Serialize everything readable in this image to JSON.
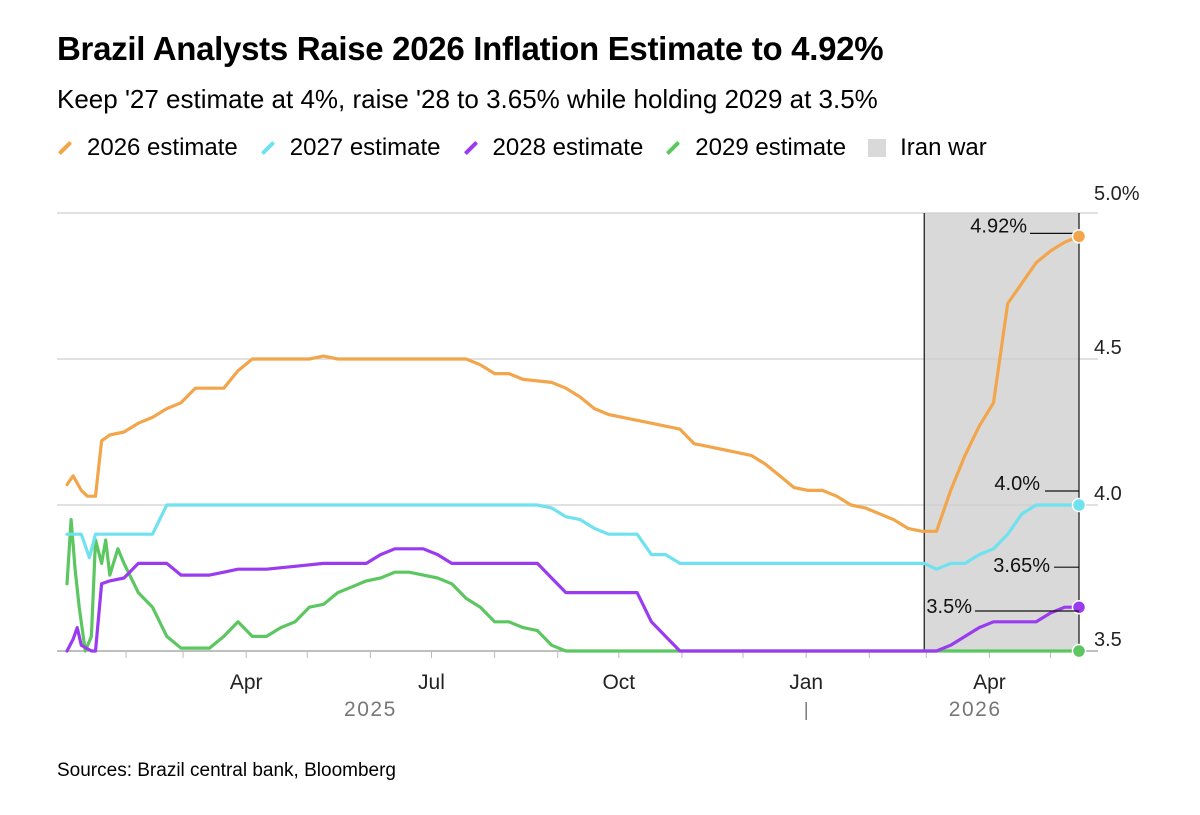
{
  "title": "Brazil Analysts Raise 2026 Inflation Estimate to 4.92%",
  "subtitle": "Keep '27 estimate at 4%, raise '28 to 3.65% while holding 2029 at 3.5%",
  "legend": [
    {
      "label": "2026 estimate",
      "color": "#f2a54a"
    },
    {
      "label": "2027 estimate",
      "color": "#6fe1ef"
    },
    {
      "label": "2028 estimate",
      "color": "#9b3bf0"
    },
    {
      "label": "2029 estimate",
      "color": "#5cc760"
    },
    {
      "label": "Iran war",
      "color": "#d9d9d9"
    }
  ],
  "source": "Sources: Brazil central bank, Bloomberg",
  "chart_data": {
    "type": "line",
    "x_axis": {
      "range": [
        "2025-01-03",
        "2026-05-15"
      ],
      "tick_labels": [
        {
          "date": "2025-04-01",
          "label": "Apr"
        },
        {
          "date": "2025-07-01",
          "label": "Jul"
        },
        {
          "date": "2025-10-01",
          "label": "Oct"
        },
        {
          "date": "2026-01-01",
          "label": "Jan"
        },
        {
          "date": "2026-04-01",
          "label": "Apr"
        }
      ],
      "year_labels": [
        {
          "date": "2025-06-01",
          "label": "2025"
        },
        {
          "date": "2026-03-25",
          "label": "2026"
        }
      ]
    },
    "y_axis": {
      "range": [
        3.5,
        5.0
      ],
      "tick_labels": [
        {
          "value": 3.5,
          "label": "3.5"
        },
        {
          "value": 4.0,
          "label": "4.0"
        },
        {
          "value": 4.5,
          "label": "4.5"
        },
        {
          "value": 5.0,
          "label": "5.0%"
        }
      ]
    },
    "shaded_period": {
      "label": "Iran war",
      "start": "2026-02-28",
      "end": "2026-05-15"
    },
    "end_labels": [
      {
        "series": "2026 estimate",
        "text": "4.92%"
      },
      {
        "series": "2027 estimate",
        "text": "4.0%"
      },
      {
        "series": "2028 estimate",
        "text": "3.65%"
      },
      {
        "series": "2029 estimate",
        "text": "3.5%"
      }
    ],
    "series": [
      {
        "name": "2026 estimate",
        "color": "#f2a54a",
        "points": [
          [
            "2025-01-03",
            4.07
          ],
          [
            "2025-01-06",
            4.1
          ],
          [
            "2025-01-10",
            4.05
          ],
          [
            "2025-01-13",
            4.03
          ],
          [
            "2025-01-17",
            4.03
          ],
          [
            "2025-01-20",
            4.22
          ],
          [
            "2025-01-24",
            4.24
          ],
          [
            "2025-01-31",
            4.25
          ],
          [
            "2025-02-07",
            4.28
          ],
          [
            "2025-02-14",
            4.3
          ],
          [
            "2025-02-21",
            4.33
          ],
          [
            "2025-02-28",
            4.35
          ],
          [
            "2025-03-07",
            4.4
          ],
          [
            "2025-03-14",
            4.4
          ],
          [
            "2025-03-21",
            4.4
          ],
          [
            "2025-03-28",
            4.46
          ],
          [
            "2025-04-04",
            4.5
          ],
          [
            "2025-05-02",
            4.5
          ],
          [
            "2025-05-09",
            4.51
          ],
          [
            "2025-05-16",
            4.5
          ],
          [
            "2025-06-06",
            4.5
          ],
          [
            "2025-07-04",
            4.5
          ],
          [
            "2025-07-18",
            4.5
          ],
          [
            "2025-07-25",
            4.48
          ],
          [
            "2025-08-01",
            4.45
          ],
          [
            "2025-08-08",
            4.45
          ],
          [
            "2025-08-15",
            4.43
          ],
          [
            "2025-08-29",
            4.42
          ],
          [
            "2025-09-05",
            4.4
          ],
          [
            "2025-09-12",
            4.37
          ],
          [
            "2025-09-19",
            4.33
          ],
          [
            "2025-09-26",
            4.31
          ],
          [
            "2025-10-03",
            4.3
          ],
          [
            "2025-10-10",
            4.29
          ],
          [
            "2025-10-17",
            4.28
          ],
          [
            "2025-10-24",
            4.27
          ],
          [
            "2025-10-31",
            4.26
          ],
          [
            "2025-11-07",
            4.21
          ],
          [
            "2025-11-14",
            4.2
          ],
          [
            "2025-11-21",
            4.19
          ],
          [
            "2025-11-28",
            4.18
          ],
          [
            "2025-12-05",
            4.17
          ],
          [
            "2025-12-12",
            4.14
          ],
          [
            "2025-12-19",
            4.1
          ],
          [
            "2025-12-26",
            4.06
          ],
          [
            "2026-01-02",
            4.05
          ],
          [
            "2026-01-09",
            4.05
          ],
          [
            "2026-01-16",
            4.03
          ],
          [
            "2026-01-23",
            4.0
          ],
          [
            "2026-01-30",
            3.99
          ],
          [
            "2026-02-06",
            3.97
          ],
          [
            "2026-02-13",
            3.95
          ],
          [
            "2026-02-20",
            3.92
          ],
          [
            "2026-02-27",
            3.91
          ],
          [
            "2026-03-06",
            3.91
          ],
          [
            "2026-03-13",
            4.05
          ],
          [
            "2026-03-20",
            4.17
          ],
          [
            "2026-03-27",
            4.27
          ],
          [
            "2026-04-03",
            4.35
          ],
          [
            "2026-04-10",
            4.69
          ],
          [
            "2026-04-17",
            4.76
          ],
          [
            "2026-04-24",
            4.83
          ],
          [
            "2026-05-01",
            4.87
          ],
          [
            "2026-05-08",
            4.9
          ],
          [
            "2026-05-15",
            4.92
          ]
        ]
      },
      {
        "name": "2027 estimate",
        "color": "#6fe1ef",
        "points": [
          [
            "2025-01-03",
            3.9
          ],
          [
            "2025-01-10",
            3.9
          ],
          [
            "2025-01-14",
            3.82
          ],
          [
            "2025-01-17",
            3.9
          ],
          [
            "2025-01-24",
            3.9
          ],
          [
            "2025-01-31",
            3.9
          ],
          [
            "2025-02-14",
            3.9
          ],
          [
            "2025-02-21",
            4.0
          ],
          [
            "2025-03-14",
            4.0
          ],
          [
            "2025-08-22",
            4.0
          ],
          [
            "2025-08-29",
            3.99
          ],
          [
            "2025-09-05",
            3.96
          ],
          [
            "2025-09-12",
            3.95
          ],
          [
            "2025-09-19",
            3.92
          ],
          [
            "2025-09-26",
            3.9
          ],
          [
            "2025-10-10",
            3.9
          ],
          [
            "2025-10-17",
            3.83
          ],
          [
            "2025-10-24",
            3.83
          ],
          [
            "2025-10-31",
            3.8
          ],
          [
            "2025-11-30",
            3.8
          ],
          [
            "2025-12-31",
            3.8
          ],
          [
            "2026-01-31",
            3.8
          ],
          [
            "2026-02-28",
            3.8
          ],
          [
            "2026-03-06",
            3.78
          ],
          [
            "2026-03-13",
            3.8
          ],
          [
            "2026-03-20",
            3.8
          ],
          [
            "2026-03-27",
            3.83
          ],
          [
            "2026-04-03",
            3.85
          ],
          [
            "2026-04-10",
            3.9
          ],
          [
            "2026-04-17",
            3.97
          ],
          [
            "2026-04-24",
            4.0
          ],
          [
            "2026-05-15",
            4.0
          ]
        ]
      },
      {
        "name": "2028 estimate",
        "color": "#9b3bf0",
        "points": [
          [
            "2025-01-03",
            3.5
          ],
          [
            "2025-01-06",
            3.54
          ],
          [
            "2025-01-08",
            3.58
          ],
          [
            "2025-01-10",
            3.52
          ],
          [
            "2025-01-15",
            3.5
          ],
          [
            "2025-01-17",
            3.5
          ],
          [
            "2025-01-20",
            3.73
          ],
          [
            "2025-01-24",
            3.74
          ],
          [
            "2025-01-31",
            3.75
          ],
          [
            "2025-02-07",
            3.8
          ],
          [
            "2025-02-21",
            3.8
          ],
          [
            "2025-02-28",
            3.76
          ],
          [
            "2025-03-14",
            3.76
          ],
          [
            "2025-03-21",
            3.77
          ],
          [
            "2025-03-28",
            3.78
          ],
          [
            "2025-04-11",
            3.78
          ],
          [
            "2025-04-25",
            3.79
          ],
          [
            "2025-05-09",
            3.8
          ],
          [
            "2025-05-30",
            3.8
          ],
          [
            "2025-06-06",
            3.83
          ],
          [
            "2025-06-13",
            3.85
          ],
          [
            "2025-06-27",
            3.85
          ],
          [
            "2025-07-04",
            3.83
          ],
          [
            "2025-07-11",
            3.8
          ],
          [
            "2025-08-22",
            3.8
          ],
          [
            "2025-08-29",
            3.75
          ],
          [
            "2025-09-05",
            3.7
          ],
          [
            "2025-09-12",
            3.7
          ],
          [
            "2025-10-10",
            3.7
          ],
          [
            "2025-10-17",
            3.6
          ],
          [
            "2025-10-24",
            3.55
          ],
          [
            "2025-10-31",
            3.5
          ],
          [
            "2026-03-06",
            3.5
          ],
          [
            "2026-03-13",
            3.52
          ],
          [
            "2026-03-20",
            3.55
          ],
          [
            "2026-03-27",
            3.58
          ],
          [
            "2026-04-03",
            3.6
          ],
          [
            "2026-04-24",
            3.6
          ],
          [
            "2026-05-01",
            3.63
          ],
          [
            "2026-05-08",
            3.65
          ],
          [
            "2026-05-15",
            3.65
          ]
        ]
      },
      {
        "name": "2029 estimate",
        "color": "#5cc760",
        "points": [
          [
            "2025-01-03",
            3.73
          ],
          [
            "2025-01-05",
            3.95
          ],
          [
            "2025-01-07",
            3.78
          ],
          [
            "2025-01-09",
            3.65
          ],
          [
            "2025-01-12",
            3.5
          ],
          [
            "2025-01-15",
            3.55
          ],
          [
            "2025-01-17",
            3.88
          ],
          [
            "2025-01-20",
            3.8
          ],
          [
            "2025-01-22",
            3.88
          ],
          [
            "2025-01-24",
            3.76
          ],
          [
            "2025-01-28",
            3.85
          ],
          [
            "2025-01-31",
            3.8
          ],
          [
            "2025-02-07",
            3.7
          ],
          [
            "2025-02-14",
            3.65
          ],
          [
            "2025-02-21",
            3.55
          ],
          [
            "2025-02-28",
            3.51
          ],
          [
            "2025-03-14",
            3.51
          ],
          [
            "2025-03-21",
            3.55
          ],
          [
            "2025-03-28",
            3.6
          ],
          [
            "2025-04-04",
            3.55
          ],
          [
            "2025-04-11",
            3.55
          ],
          [
            "2025-04-18",
            3.58
          ],
          [
            "2025-04-25",
            3.6
          ],
          [
            "2025-05-02",
            3.65
          ],
          [
            "2025-05-09",
            3.66
          ],
          [
            "2025-05-16",
            3.7
          ],
          [
            "2025-05-23",
            3.72
          ],
          [
            "2025-05-30",
            3.74
          ],
          [
            "2025-06-06",
            3.75
          ],
          [
            "2025-06-13",
            3.77
          ],
          [
            "2025-06-20",
            3.77
          ],
          [
            "2025-06-27",
            3.76
          ],
          [
            "2025-07-04",
            3.75
          ],
          [
            "2025-07-11",
            3.73
          ],
          [
            "2025-07-18",
            3.68
          ],
          [
            "2025-07-25",
            3.65
          ],
          [
            "2025-08-01",
            3.6
          ],
          [
            "2025-08-08",
            3.6
          ],
          [
            "2025-08-15",
            3.58
          ],
          [
            "2025-08-22",
            3.57
          ],
          [
            "2025-08-29",
            3.52
          ],
          [
            "2025-09-05",
            3.5
          ],
          [
            "2025-12-31",
            3.5
          ],
          [
            "2026-05-15",
            3.5
          ]
        ]
      }
    ]
  }
}
